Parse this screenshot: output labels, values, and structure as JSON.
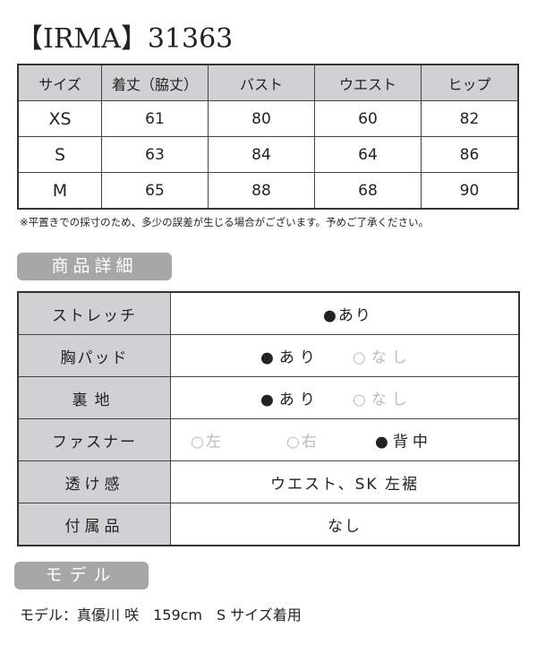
{
  "title": "【IRMA】31363",
  "size_table": {
    "headers": [
      "サイズ",
      "着丈（脇丈）",
      "バスト",
      "ウエスト",
      "ヒップ"
    ],
    "rows": [
      [
        "XS",
        "61",
        "80",
        "60",
        "82"
      ],
      [
        "S",
        "63",
        "84",
        "64",
        "86"
      ],
      [
        "M",
        "65",
        "88",
        "68",
        "90"
      ]
    ]
  },
  "note": "※平置きでの採寸のため、多少の誤差が生じる場合がございます。予めご了承ください。",
  "detail_heading": "商品詳細",
  "details": {
    "stretch": {
      "label": "ストレッチ",
      "opt1": "●あり"
    },
    "pad": {
      "label": "胸パッド",
      "opt1": "●あり",
      "opt2": "○なし"
    },
    "lining": {
      "label": "裏地",
      "opt1": "●あり",
      "opt2": "○なし"
    },
    "zipper": {
      "label": "ファスナー",
      "opt1": "○左",
      "opt2": "○右",
      "opt3": "●背中"
    },
    "sheer": {
      "label": "透け感",
      "value": "ウエスト、SK 左裾"
    },
    "accessory": {
      "label": "付属品",
      "value": "なし"
    }
  },
  "model_heading": "モデル",
  "model_text": "モデル：真優川 咲　159cm　S サイズ着用",
  "colors": {
    "header_bg": "#cfd1d2",
    "pill_bg": "#a7a7a7",
    "inactive": "#bbbbbb"
  }
}
